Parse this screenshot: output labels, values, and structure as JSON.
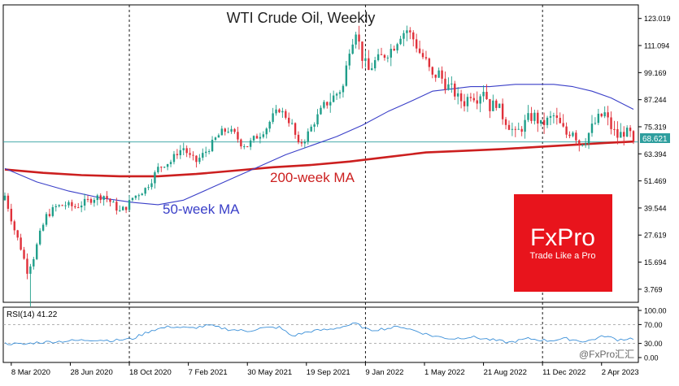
{
  "chart_data": [
    {
      "type": "candlestick",
      "title": "WTI Crude Oil, Weekly",
      "y_ticks": [
        "123.019",
        "111.094",
        "99.169",
        "87.244",
        "75.319",
        "63.394",
        "51.469",
        "39.544",
        "27.619",
        "15.694",
        "3.769"
      ],
      "ylim": [
        -2,
        129
      ],
      "current_price": "68.621",
      "current_value": 68.621,
      "x_ticks": [
        "8 Mar 2020",
        "28 Jun 2020",
        "18 Oct 2020",
        "7 Feb 2021",
        "30 May 2021",
        "19 Sep 2021",
        "9 Jan 2022",
        "1 May 2022",
        "21 Aug 2022",
        "11 Dec 2022",
        "2 Apr 2023"
      ],
      "vertical_markers": [
        "18 Oct 2020",
        "9 Jan 2022",
        "11 Dec 2022"
      ],
      "colors": {
        "up": "#1f9e8a",
        "down": "#e0303a",
        "ma50": "#3a3fc8",
        "ma200": "#cc1f1f",
        "price_line": "#2e9e9e"
      },
      "price_path": [
        [
          0,
          45
        ],
        [
          3,
          30
        ],
        [
          5,
          22
        ],
        [
          7,
          12
        ],
        [
          9,
          18
        ],
        [
          11,
          28
        ],
        [
          13,
          36
        ],
        [
          16,
          40
        ],
        [
          19,
          41
        ],
        [
          22,
          40
        ],
        [
          25,
          42
        ],
        [
          28,
          44
        ],
        [
          31,
          45
        ],
        [
          34,
          41
        ],
        [
          36,
          38
        ],
        [
          38,
          40
        ],
        [
          40,
          44
        ],
        [
          42,
          46
        ],
        [
          44,
          48
        ],
        [
          46,
          52
        ],
        [
          48,
          57
        ],
        [
          50,
          59
        ],
        [
          52,
          60
        ],
        [
          54,
          64
        ],
        [
          56,
          66
        ],
        [
          58,
          62
        ],
        [
          60,
          60
        ],
        [
          62,
          63
        ],
        [
          64,
          66
        ],
        [
          66,
          70
        ],
        [
          68,
          73
        ],
        [
          70,
          74
        ],
        [
          72,
          72
        ],
        [
          74,
          68
        ],
        [
          76,
          67
        ],
        [
          78,
          70
        ],
        [
          80,
          72
        ],
        [
          82,
          75
        ],
        [
          84,
          80
        ],
        [
          86,
          83
        ],
        [
          88,
          80
        ],
        [
          90,
          76
        ],
        [
          92,
          67
        ],
        [
          94,
          70
        ],
        [
          96,
          75
        ],
        [
          98,
          80
        ],
        [
          100,
          85
        ],
        [
          102,
          87
        ],
        [
          104,
          90
        ],
        [
          106,
          93
        ],
        [
          108,
          110
        ],
        [
          110,
          118
        ],
        [
          112,
          106
        ],
        [
          114,
          100
        ],
        [
          116,
          104
        ],
        [
          118,
          106
        ],
        [
          120,
          108
        ],
        [
          122,
          111
        ],
        [
          124,
          116
        ],
        [
          126,
          118
        ],
        [
          128,
          114
        ],
        [
          130,
          108
        ],
        [
          132,
          104
        ],
        [
          134,
          97
        ],
        [
          136,
          99
        ],
        [
          138,
          94
        ],
        [
          140,
          92
        ],
        [
          142,
          88
        ],
        [
          144,
          86
        ],
        [
          146,
          90
        ],
        [
          148,
          88
        ],
        [
          150,
          92
        ],
        [
          152,
          84
        ],
        [
          154,
          86
        ],
        [
          156,
          80
        ],
        [
          158,
          76
        ],
        [
          160,
          72
        ],
        [
          162,
          75
        ],
        [
          164,
          79
        ],
        [
          166,
          80
        ],
        [
          168,
          76
        ],
        [
          170,
          78
        ],
        [
          172,
          80
        ],
        [
          174,
          76
        ],
        [
          176,
          72
        ],
        [
          178,
          74
        ],
        [
          180,
          68
        ],
        [
          182,
          70
        ],
        [
          184,
          75
        ],
        [
          186,
          79
        ],
        [
          188,
          81
        ],
        [
          190,
          75
        ],
        [
          192,
          71
        ],
        [
          194,
          73
        ],
        [
          196,
          72
        ],
        [
          197,
          68.6
        ]
      ],
      "ma50": [
        [
          0,
          57
        ],
        [
          10,
          51
        ],
        [
          20,
          47
        ],
        [
          30,
          44
        ],
        [
          40,
          42
        ],
        [
          48,
          41
        ],
        [
          56,
          43
        ],
        [
          64,
          48
        ],
        [
          72,
          53
        ],
        [
          80,
          58
        ],
        [
          88,
          63
        ],
        [
          96,
          67
        ],
        [
          104,
          71
        ],
        [
          112,
          76
        ],
        [
          120,
          82
        ],
        [
          128,
          87
        ],
        [
          134,
          91
        ],
        [
          140,
          92
        ],
        [
          146,
          93
        ],
        [
          152,
          93
        ],
        [
          160,
          94
        ],
        [
          166,
          94
        ],
        [
          172,
          94
        ],
        [
          178,
          93
        ],
        [
          184,
          91
        ],
        [
          190,
          88
        ],
        [
          197,
          83
        ]
      ],
      "ma200": [
        [
          0,
          56.5
        ],
        [
          12,
          55
        ],
        [
          24,
          54
        ],
        [
          36,
          53.5
        ],
        [
          48,
          53.5
        ],
        [
          60,
          54.5
        ],
        [
          72,
          56
        ],
        [
          84,
          57.5
        ],
        [
          96,
          58.5
        ],
        [
          108,
          60
        ],
        [
          120,
          62
        ],
        [
          132,
          64
        ],
        [
          144,
          64.7
        ],
        [
          156,
          65.5
        ],
        [
          168,
          66.5
        ],
        [
          180,
          67.5
        ],
        [
          188,
          68.2
        ],
        [
          197,
          68.8
        ]
      ],
      "ma50_label": "50-week MA",
      "ma200_label": "200-week MA"
    },
    {
      "type": "line",
      "title": "RSI(14) 41.22",
      "y_ticks": [
        "100.00",
        "70.00",
        "30.00",
        "0.00"
      ],
      "ylim": [
        0,
        100
      ],
      "series": [
        {
          "values": [
            [
              0,
              30
            ],
            [
              6,
              28
            ],
            [
              10,
              32
            ],
            [
              16,
              34
            ],
            [
              22,
              36
            ],
            [
              28,
              38
            ],
            [
              34,
              36
            ],
            [
              40,
              40
            ],
            [
              46,
              58
            ],
            [
              52,
              66
            ],
            [
              58,
              62
            ],
            [
              64,
              68
            ],
            [
              70,
              60
            ],
            [
              76,
              56
            ],
            [
              80,
              62
            ],
            [
              86,
              64
            ],
            [
              90,
              46
            ],
            [
              96,
              56
            ],
            [
              102,
              60
            ],
            [
              106,
              66
            ],
            [
              110,
              72
            ],
            [
              114,
              58
            ],
            [
              120,
              62
            ],
            [
              124,
              66
            ],
            [
              128,
              58
            ],
            [
              134,
              46
            ],
            [
              140,
              40
            ],
            [
              146,
              44
            ],
            [
              152,
              38
            ],
            [
              158,
              32
            ],
            [
              164,
              40
            ],
            [
              170,
              36
            ],
            [
              176,
              40
            ],
            [
              182,
              34
            ],
            [
              188,
              46
            ],
            [
              192,
              38
            ],
            [
              197,
              41
            ]
          ]
        }
      ]
    }
  ],
  "watermark": {
    "brand": "FxPro",
    "tagline": "Trade Like a Pro",
    "footer_handle": "@FxPro汇汇"
  }
}
